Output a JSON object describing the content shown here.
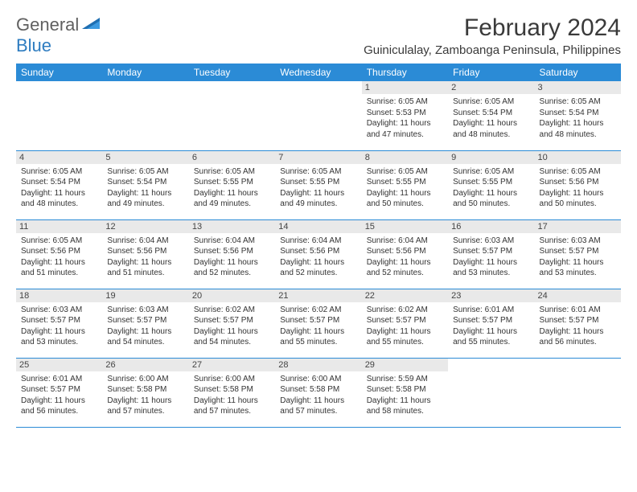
{
  "brand": {
    "part1": "General",
    "part2": "Blue"
  },
  "title": "February 2024",
  "location": "Guiniculalay, Zamboanga Peninsula, Philippines",
  "colors": {
    "header_bg": "#2b8bd6",
    "header_fg": "#ffffff",
    "daynum_bg": "#e9e9e9",
    "rule": "#2b8bd6",
    "brand_gray": "#606060",
    "brand_blue": "#2e7cc0"
  },
  "weekdays": [
    "Sunday",
    "Monday",
    "Tuesday",
    "Wednesday",
    "Thursday",
    "Friday",
    "Saturday"
  ],
  "weeks": [
    [
      {
        "day": "",
        "sunrise": "",
        "sunset": "",
        "daylight": ""
      },
      {
        "day": "",
        "sunrise": "",
        "sunset": "",
        "daylight": ""
      },
      {
        "day": "",
        "sunrise": "",
        "sunset": "",
        "daylight": ""
      },
      {
        "day": "",
        "sunrise": "",
        "sunset": "",
        "daylight": ""
      },
      {
        "day": "1",
        "sunrise": "Sunrise: 6:05 AM",
        "sunset": "Sunset: 5:53 PM",
        "daylight": "Daylight: 11 hours and 47 minutes."
      },
      {
        "day": "2",
        "sunrise": "Sunrise: 6:05 AM",
        "sunset": "Sunset: 5:54 PM",
        "daylight": "Daylight: 11 hours and 48 minutes."
      },
      {
        "day": "3",
        "sunrise": "Sunrise: 6:05 AM",
        "sunset": "Sunset: 5:54 PM",
        "daylight": "Daylight: 11 hours and 48 minutes."
      }
    ],
    [
      {
        "day": "4",
        "sunrise": "Sunrise: 6:05 AM",
        "sunset": "Sunset: 5:54 PM",
        "daylight": "Daylight: 11 hours and 48 minutes."
      },
      {
        "day": "5",
        "sunrise": "Sunrise: 6:05 AM",
        "sunset": "Sunset: 5:54 PM",
        "daylight": "Daylight: 11 hours and 49 minutes."
      },
      {
        "day": "6",
        "sunrise": "Sunrise: 6:05 AM",
        "sunset": "Sunset: 5:55 PM",
        "daylight": "Daylight: 11 hours and 49 minutes."
      },
      {
        "day": "7",
        "sunrise": "Sunrise: 6:05 AM",
        "sunset": "Sunset: 5:55 PM",
        "daylight": "Daylight: 11 hours and 49 minutes."
      },
      {
        "day": "8",
        "sunrise": "Sunrise: 6:05 AM",
        "sunset": "Sunset: 5:55 PM",
        "daylight": "Daylight: 11 hours and 50 minutes."
      },
      {
        "day": "9",
        "sunrise": "Sunrise: 6:05 AM",
        "sunset": "Sunset: 5:55 PM",
        "daylight": "Daylight: 11 hours and 50 minutes."
      },
      {
        "day": "10",
        "sunrise": "Sunrise: 6:05 AM",
        "sunset": "Sunset: 5:56 PM",
        "daylight": "Daylight: 11 hours and 50 minutes."
      }
    ],
    [
      {
        "day": "11",
        "sunrise": "Sunrise: 6:05 AM",
        "sunset": "Sunset: 5:56 PM",
        "daylight": "Daylight: 11 hours and 51 minutes."
      },
      {
        "day": "12",
        "sunrise": "Sunrise: 6:04 AM",
        "sunset": "Sunset: 5:56 PM",
        "daylight": "Daylight: 11 hours and 51 minutes."
      },
      {
        "day": "13",
        "sunrise": "Sunrise: 6:04 AM",
        "sunset": "Sunset: 5:56 PM",
        "daylight": "Daylight: 11 hours and 52 minutes."
      },
      {
        "day": "14",
        "sunrise": "Sunrise: 6:04 AM",
        "sunset": "Sunset: 5:56 PM",
        "daylight": "Daylight: 11 hours and 52 minutes."
      },
      {
        "day": "15",
        "sunrise": "Sunrise: 6:04 AM",
        "sunset": "Sunset: 5:56 PM",
        "daylight": "Daylight: 11 hours and 52 minutes."
      },
      {
        "day": "16",
        "sunrise": "Sunrise: 6:03 AM",
        "sunset": "Sunset: 5:57 PM",
        "daylight": "Daylight: 11 hours and 53 minutes."
      },
      {
        "day": "17",
        "sunrise": "Sunrise: 6:03 AM",
        "sunset": "Sunset: 5:57 PM",
        "daylight": "Daylight: 11 hours and 53 minutes."
      }
    ],
    [
      {
        "day": "18",
        "sunrise": "Sunrise: 6:03 AM",
        "sunset": "Sunset: 5:57 PM",
        "daylight": "Daylight: 11 hours and 53 minutes."
      },
      {
        "day": "19",
        "sunrise": "Sunrise: 6:03 AM",
        "sunset": "Sunset: 5:57 PM",
        "daylight": "Daylight: 11 hours and 54 minutes."
      },
      {
        "day": "20",
        "sunrise": "Sunrise: 6:02 AM",
        "sunset": "Sunset: 5:57 PM",
        "daylight": "Daylight: 11 hours and 54 minutes."
      },
      {
        "day": "21",
        "sunrise": "Sunrise: 6:02 AM",
        "sunset": "Sunset: 5:57 PM",
        "daylight": "Daylight: 11 hours and 55 minutes."
      },
      {
        "day": "22",
        "sunrise": "Sunrise: 6:02 AM",
        "sunset": "Sunset: 5:57 PM",
        "daylight": "Daylight: 11 hours and 55 minutes."
      },
      {
        "day": "23",
        "sunrise": "Sunrise: 6:01 AM",
        "sunset": "Sunset: 5:57 PM",
        "daylight": "Daylight: 11 hours and 55 minutes."
      },
      {
        "day": "24",
        "sunrise": "Sunrise: 6:01 AM",
        "sunset": "Sunset: 5:57 PM",
        "daylight": "Daylight: 11 hours and 56 minutes."
      }
    ],
    [
      {
        "day": "25",
        "sunrise": "Sunrise: 6:01 AM",
        "sunset": "Sunset: 5:57 PM",
        "daylight": "Daylight: 11 hours and 56 minutes."
      },
      {
        "day": "26",
        "sunrise": "Sunrise: 6:00 AM",
        "sunset": "Sunset: 5:58 PM",
        "daylight": "Daylight: 11 hours and 57 minutes."
      },
      {
        "day": "27",
        "sunrise": "Sunrise: 6:00 AM",
        "sunset": "Sunset: 5:58 PM",
        "daylight": "Daylight: 11 hours and 57 minutes."
      },
      {
        "day": "28",
        "sunrise": "Sunrise: 6:00 AM",
        "sunset": "Sunset: 5:58 PM",
        "daylight": "Daylight: 11 hours and 57 minutes."
      },
      {
        "day": "29",
        "sunrise": "Sunrise: 5:59 AM",
        "sunset": "Sunset: 5:58 PM",
        "daylight": "Daylight: 11 hours and 58 minutes."
      },
      {
        "day": "",
        "sunrise": "",
        "sunset": "",
        "daylight": ""
      },
      {
        "day": "",
        "sunrise": "",
        "sunset": "",
        "daylight": ""
      }
    ]
  ]
}
